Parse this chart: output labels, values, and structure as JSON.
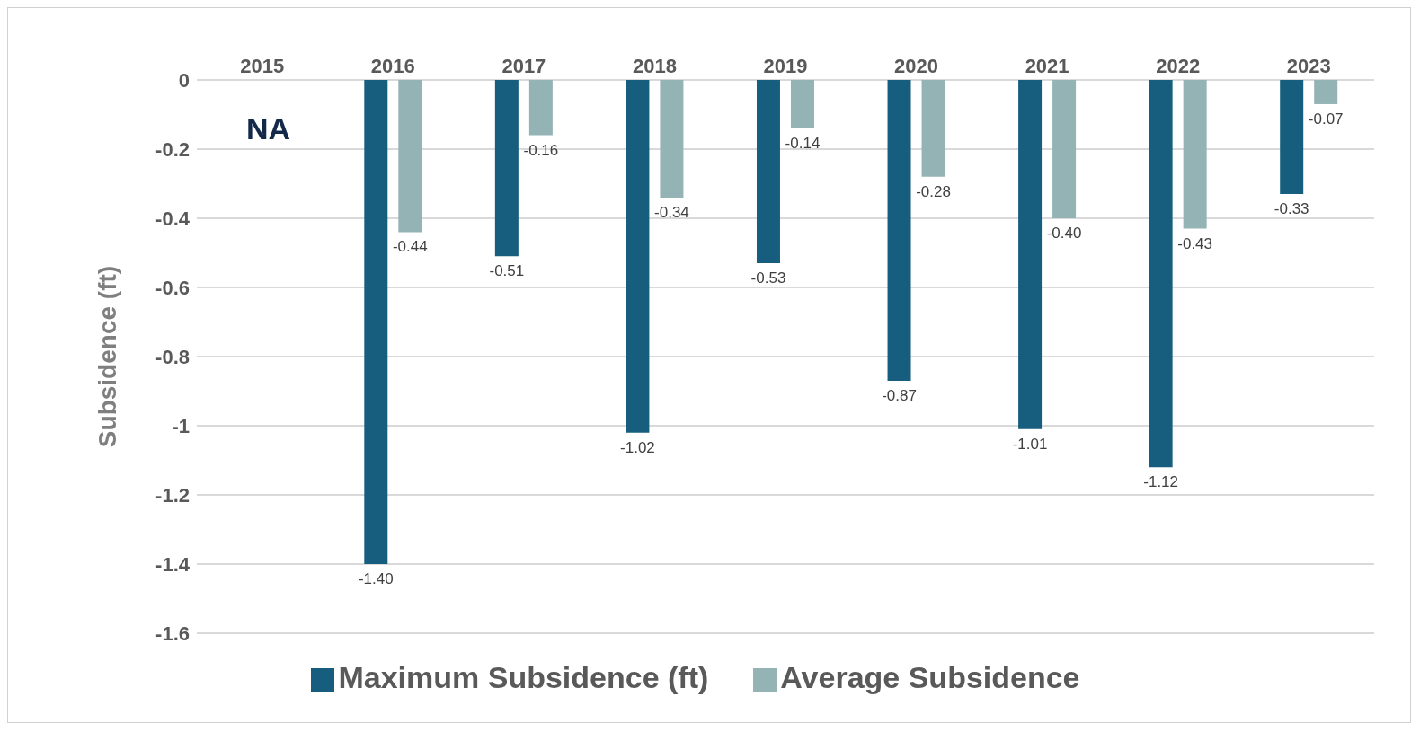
{
  "chart_data": {
    "type": "bar",
    "ylabel": "Subsidence (ft)",
    "categories": [
      "2015",
      "2016",
      "2017",
      "2018",
      "2019",
      "2020",
      "2021",
      "2022",
      "2023"
    ],
    "series": [
      {
        "name": "Maximum Subsidence (ft)",
        "color": "#175e7e",
        "values": [
          null,
          -1.4,
          -0.51,
          -1.02,
          -0.53,
          -0.87,
          -1.01,
          -1.12,
          -0.33
        ],
        "value_labels": [
          null,
          "-1.40",
          "-0.51",
          "-1.02",
          "-0.53",
          "-0.87",
          "-1.01",
          "-1.12",
          "-0.33"
        ]
      },
      {
        "name": "Average Subsidence",
        "color": "#93b3b5",
        "values": [
          null,
          -0.44,
          -0.16,
          -0.34,
          -0.14,
          -0.28,
          -0.4,
          -0.43,
          -0.07
        ],
        "value_labels": [
          null,
          "-0.44",
          "-0.16",
          "-0.34",
          "-0.14",
          "-0.28",
          "-0.40",
          "-0.43",
          "-0.07"
        ]
      }
    ],
    "ylim": [
      -1.6,
      0
    ],
    "yticks": [
      0,
      -0.2,
      -0.4,
      -0.6,
      -0.8,
      -1,
      -1.2,
      -1.4,
      -1.6
    ],
    "grid": "y",
    "legend": "bottom",
    "annotations": [
      "NA"
    ]
  }
}
